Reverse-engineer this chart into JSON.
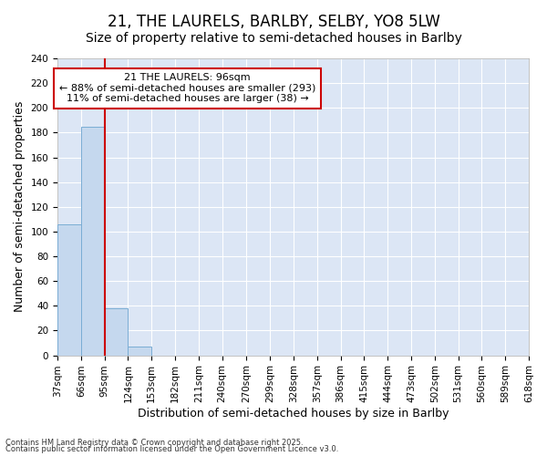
{
  "title": "21, THE LAURELS, BARLBY, SELBY, YO8 5LW",
  "subtitle": "Size of property relative to semi-detached houses in Barlby",
  "xlabel": "Distribution of semi-detached houses by size in Barlby",
  "ylabel": "Number of semi-detached properties",
  "footnote1": "Contains HM Land Registry data © Crown copyright and database right 2025.",
  "footnote2": "Contains public sector information licensed under the Open Government Licence v3.0.",
  "bar_edges": [
    37,
    66,
    95,
    124,
    153,
    182,
    211,
    240,
    270,
    299,
    328,
    357,
    386,
    415,
    444,
    473,
    502,
    531,
    560,
    589,
    618
  ],
  "bar_heights": [
    106,
    185,
    38,
    7,
    0,
    0,
    0,
    0,
    0,
    0,
    0,
    0,
    0,
    0,
    0,
    0,
    0,
    0,
    0,
    0
  ],
  "bar_color": "#c5d8ee",
  "bar_edgecolor": "#7aadd4",
  "property_line_x": 95,
  "property_line_color": "#cc0000",
  "annotation_text": "21 THE LAURELS: 96sqm\n← 88% of semi-detached houses are smaller (293)\n11% of semi-detached houses are larger (38) →",
  "annotation_box_edgecolor": "#cc0000",
  "ylim": [
    0,
    240
  ],
  "yticks": [
    0,
    20,
    40,
    60,
    80,
    100,
    120,
    140,
    160,
    180,
    200,
    220,
    240
  ],
  "fig_bg_color": "#ffffff",
  "plot_bg_color": "#dce6f5",
  "grid_color": "#ffffff",
  "title_fontsize": 12,
  "subtitle_fontsize": 10,
  "label_fontsize": 9,
  "tick_fontsize": 7.5,
  "annotation_fontsize": 8
}
